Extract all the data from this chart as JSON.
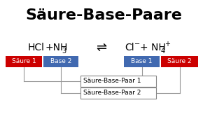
{
  "title": "Säure-Base-Paare",
  "title_fontsize": 16,
  "title_fontweight": "bold",
  "bg_color": "#ffffff",
  "arrow": "⇌",
  "label_saure1": "Säure 1",
  "label_base2": "Base 2",
  "label_base1": "Base 1",
  "label_saure2": "Säure 2",
  "label_pair1": "Säure-Base-Paar 1",
  "label_pair2": "Säure-Base-Paar 2",
  "color_saure": "#cc0000",
  "color_base": "#4169b0",
  "label_text_color": "#ffffff",
  "line_color": "#999999",
  "equation_fontsize": 10,
  "label_fontsize": 6.5,
  "pair_fontsize": 6.5,
  "sub_fontsize": 7
}
